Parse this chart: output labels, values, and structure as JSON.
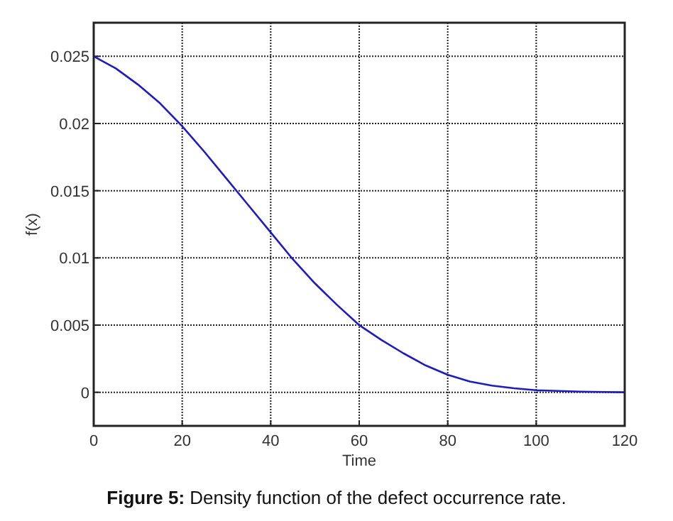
{
  "chart_data": {
    "type": "line",
    "title": "Figure 5: Density function of the defect occurrence rate.",
    "xlabel": "Time",
    "ylabel": "f(x)",
    "series": [
      {
        "color": "#1a1ad6",
        "x": [
          0,
          5,
          10,
          15,
          20,
          25,
          30,
          35,
          40,
          45,
          50,
          55,
          60,
          65,
          70,
          75,
          80,
          85,
          90,
          95,
          100,
          105,
          110,
          115,
          120
        ],
        "values": [
          0.025,
          0.0241,
          0.0229,
          0.0215,
          0.0198,
          0.0179,
          0.0159,
          0.0139,
          0.0119,
          0.0099,
          0.0081,
          0.0065,
          0.005,
          0.0039,
          0.0029,
          0.002,
          0.0013,
          0.0008,
          0.0005,
          0.0003,
          0.00015,
          0.0001,
          5e-05,
          2e-05,
          0
        ]
      }
    ],
    "xlim": [
      0,
      120
    ],
    "xticks": [
      0,
      20,
      40,
      60,
      80,
      100,
      120
    ],
    "ylim": [
      -0.0025,
      0.0275
    ],
    "yticks": [
      0,
      0.005,
      0.01,
      0.015,
      0.02,
      0.025
    ],
    "grid": true,
    "line_style": "solid",
    "marker": "none"
  }
}
